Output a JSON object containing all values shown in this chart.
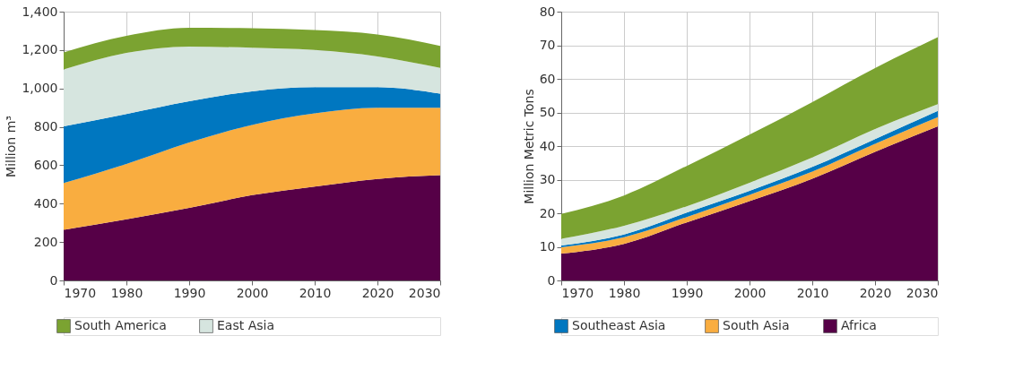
{
  "chart_data": [
    {
      "type": "area",
      "stacked": true,
      "ylabel": "Million m³",
      "x": [
        1970,
        1980,
        1990,
        2000,
        2010,
        2020,
        2030
      ],
      "xlim": [
        1970,
        2030
      ],
      "xticks": [
        1970,
        1980,
        1990,
        2000,
        2010,
        2020,
        2030
      ],
      "ylim": [
        0,
        1400
      ],
      "yticks": [
        0,
        200,
        400,
        600,
        800,
        {
          "value": 1000,
          "label": "1,000"
        },
        {
          "value": 1200,
          "label": "1,200"
        },
        {
          "value": 1400,
          "label": "1,400"
        }
      ],
      "grid": true,
      "legend": "bottom",
      "series": [
        {
          "color": "#560047",
          "values": [
            264,
            318,
            378,
            444,
            489,
            529,
            548
          ]
        },
        {
          "color": "#f9ad40",
          "values": [
            243,
            289,
            341,
            366,
            381,
            370,
            351
          ]
        },
        {
          "color": "#0077c0",
          "values": [
            296,
            260,
            214,
            175,
            137,
            108,
            74
          ]
        },
        {
          "name": "East Asia",
          "color": "#d6e5df",
          "values": [
            296,
            318,
            285,
            227,
            193,
            160,
            134
          ]
        },
        {
          "name": "South America",
          "color": "#7ba331",
          "values": [
            89,
            89,
            98,
            102,
            104,
            114,
            115
          ]
        }
      ]
    },
    {
      "type": "area",
      "stacked": true,
      "ylabel": "Million Metric Tons",
      "x": [
        1970,
        1980,
        1990,
        2000,
        2010,
        2020,
        2030
      ],
      "xlim": [
        1970,
        2030
      ],
      "xticks": [
        1970,
        1980,
        1990,
        2000,
        2010,
        2020,
        2030
      ],
      "ylim": [
        0,
        80
      ],
      "yticks": [
        0,
        10,
        20,
        30,
        40,
        50,
        60,
        70,
        80
      ],
      "grid": true,
      "legend": "bottom",
      "series": [
        {
          "name": "Africa",
          "color": "#560047",
          "values": [
            8.0,
            10.9,
            17.3,
            23.6,
            30.3,
            38.3,
            45.9
          ]
        },
        {
          "name": "South Asia",
          "color": "#f9ad40",
          "values": [
            1.9,
            2.0,
            1.6,
            1.9,
            2.1,
            2.4,
            2.7
          ]
        },
        {
          "name": "Southeast Asia",
          "color": "#0077c0",
          "values": [
            0.5,
            0.8,
            1.3,
            1.2,
            1.4,
            1.4,
            1.9
          ]
        },
        {
          "color": "#d6e5df",
          "values": [
            2.0,
            2.6,
            1.9,
            2.4,
            2.8,
            3.0,
            2.0
          ]
        },
        {
          "color": "#7ba331",
          "values": [
            7.4,
            9.0,
            12.0,
            14.3,
            16.5,
            18.1,
            19.9
          ]
        }
      ]
    }
  ]
}
